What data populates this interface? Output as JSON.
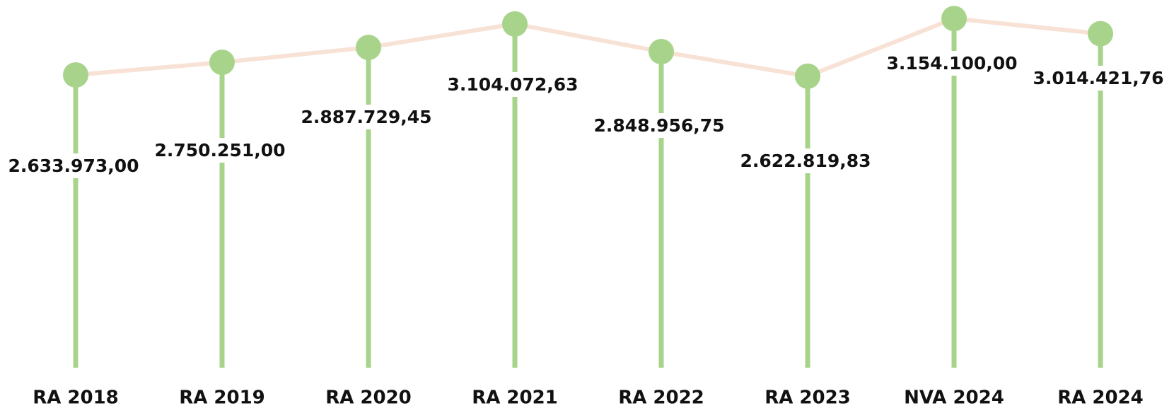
{
  "chart_data": {
    "type": "line",
    "categories": [
      "RA 2018",
      "RA 2019",
      "RA 2020",
      "RA 2021",
      "RA 2022",
      "RA 2023",
      "NVA 2024",
      "RA 2024"
    ],
    "series": [
      {
        "values": [
          2633973.0,
          2750251.0,
          2887729.45,
          3104072.63,
          2848956.75,
          2622819.83,
          3154100.0,
          3014421.76
        ],
        "labels": [
          "2.633.973,00",
          "2.750.251,00",
          "2.887.729,45",
          "3.104.072,63",
          "2.848.956,75",
          "2.622.819,83",
          "3.154.100,00",
          "3.014.421,76"
        ]
      }
    ],
    "title": "",
    "xlabel": "",
    "ylabel": "",
    "ylim": [
      0,
      3200000
    ],
    "grid": false,
    "legend": "none",
    "colors": {
      "stem": "#a7d48a",
      "marker": "#a7d48a",
      "line": "#f8e2d6",
      "text": "#111111"
    }
  }
}
